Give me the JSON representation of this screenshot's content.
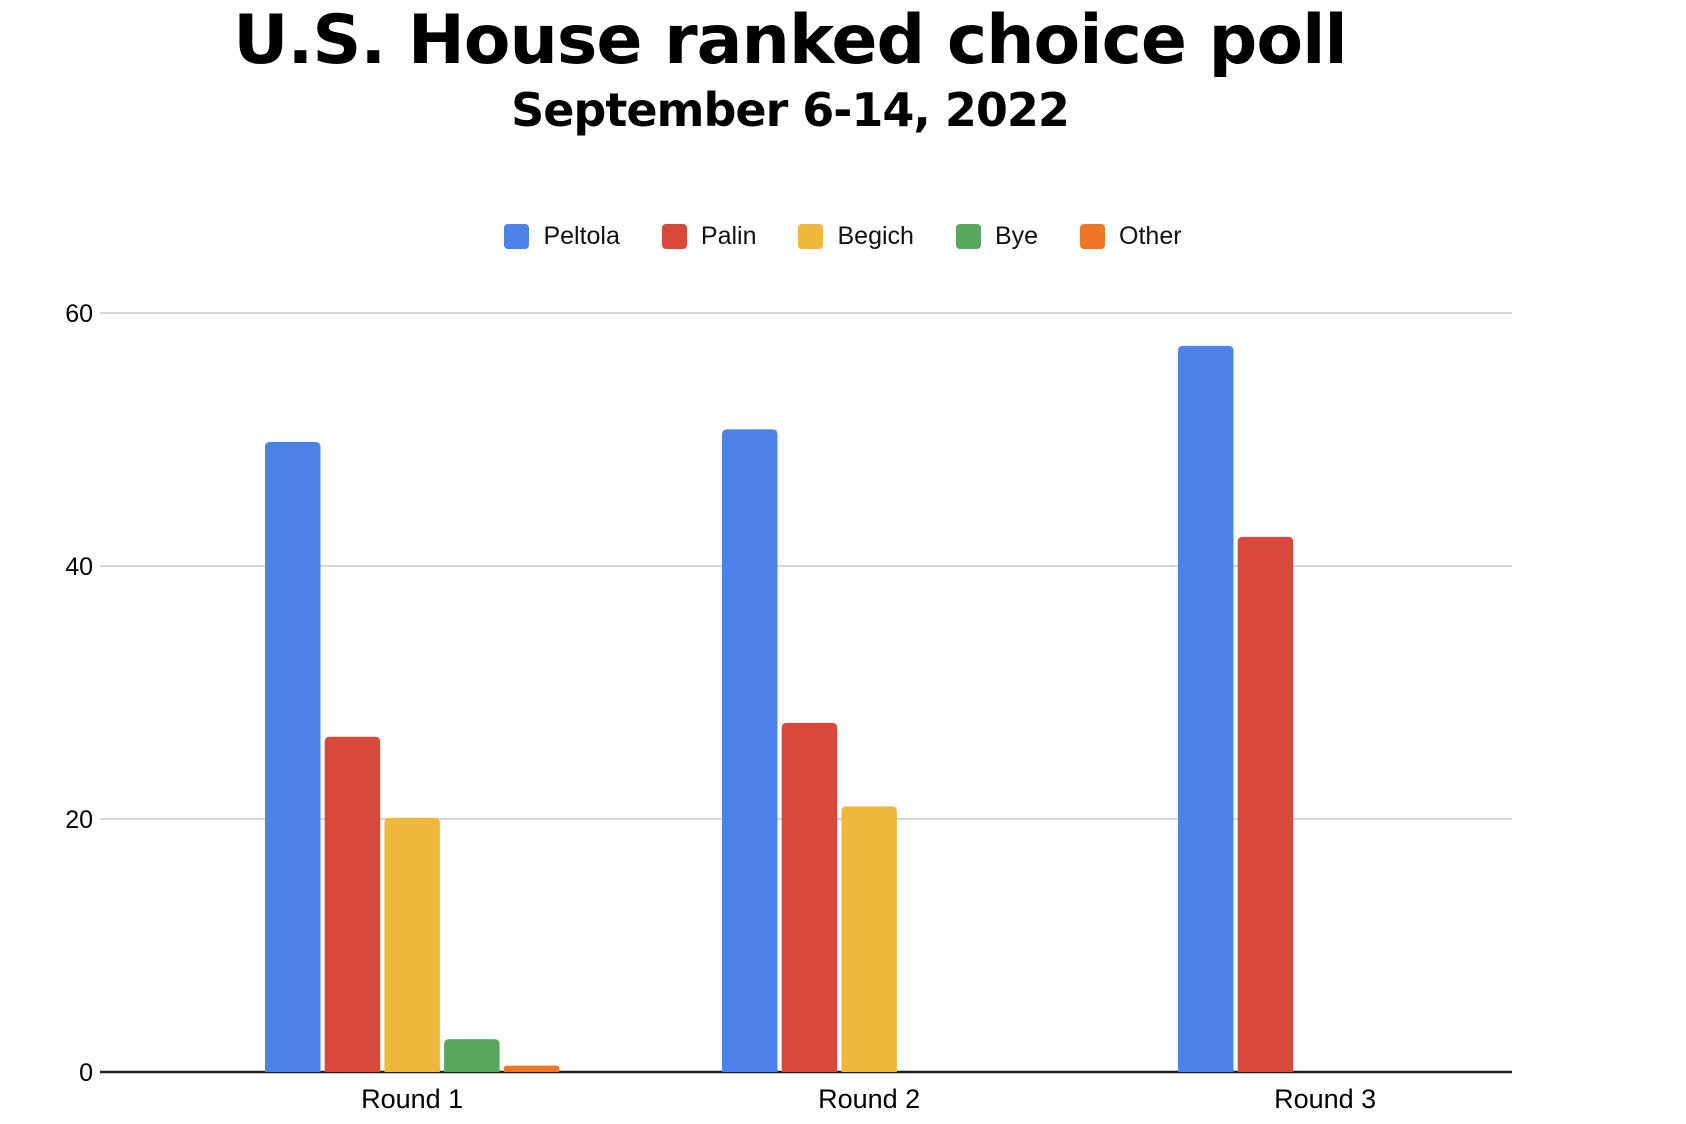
{
  "chart_data": {
    "type": "bar",
    "title": "U.S. House ranked choice poll",
    "subtitle": "September 6-14, 2022",
    "xlabel": "",
    "ylabel": "",
    "categories": [
      "Round 1",
      "Round 2",
      "Round 3"
    ],
    "series": [
      {
        "name": "Peltola",
        "color": "#4d82e9",
        "values": [
          49.8,
          50.8,
          57.4
        ]
      },
      {
        "name": "Palin",
        "color": "#d8493c",
        "values": [
          26.5,
          27.6,
          42.3
        ]
      },
      {
        "name": "Begich",
        "color": "#f0b73e",
        "values": [
          20.1,
          21.0,
          null
        ]
      },
      {
        "name": "Bye",
        "color": "#58a85f",
        "values": [
          2.6,
          null,
          null
        ]
      },
      {
        "name": "Other",
        "color": "#ee7625",
        "values": [
          0.5,
          null,
          null
        ]
      }
    ],
    "yticks": [
      0,
      20,
      40,
      60
    ],
    "ylim": [
      0,
      60
    ],
    "grid": true,
    "legend_position": "top",
    "axis_color": "#1f1f1f",
    "gridline_color": "#d6d6d6"
  }
}
